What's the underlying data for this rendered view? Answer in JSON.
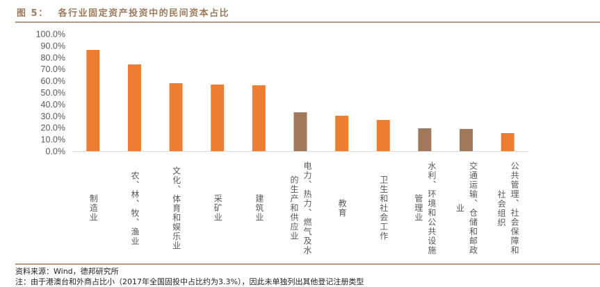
{
  "figure_label": "图 5：",
  "title": "各行业固定资产投资中的民间资本占比",
  "source": "资料来源：Wind，德邦研究所",
  "note": "注：由于港澳台和外商占比小（2017年全国固投中占比约为3.3%），因此未单独列出其他登记注册类型",
  "colors": {
    "orange": "#ED7D31",
    "brown": "#A0785A",
    "accent": "#B8977A"
  },
  "chart_data": {
    "type": "bar",
    "title": "各行业固定资产投资中的民间资本占比",
    "xlabel": "",
    "ylabel": "",
    "ylim": [
      0,
      100
    ],
    "yticks": [
      "0.0%",
      "10.0%",
      "20.0%",
      "30.0%",
      "40.0%",
      "50.0%",
      "60.0%",
      "70.0%",
      "80.0%",
      "90.0%",
      "100.0%"
    ],
    "grid": false,
    "categories": [
      "制造业",
      "农、林、牧、渔业",
      "文化、体育和娱乐业",
      "采矿业",
      "建筑业",
      "电力、热力、燃气及水的生产和供应业",
      "教育",
      "卫生和社会工作",
      "水利、环境和公共设施管理业",
      "交通运输、仓储和邮政业",
      "公共管理、社会保障和社会组织"
    ],
    "values": [
      86.4,
      74.0,
      58.0,
      56.8,
      56.2,
      33.1,
      30.2,
      26.6,
      19.5,
      18.9,
      15.4
    ],
    "bar_colors": [
      "#ED7D31",
      "#ED7D31",
      "#ED7D31",
      "#ED7D31",
      "#ED7D31",
      "#A0785A",
      "#ED7D31",
      "#ED7D31",
      "#A0785A",
      "#A0785A",
      "#ED7D31"
    ]
  }
}
